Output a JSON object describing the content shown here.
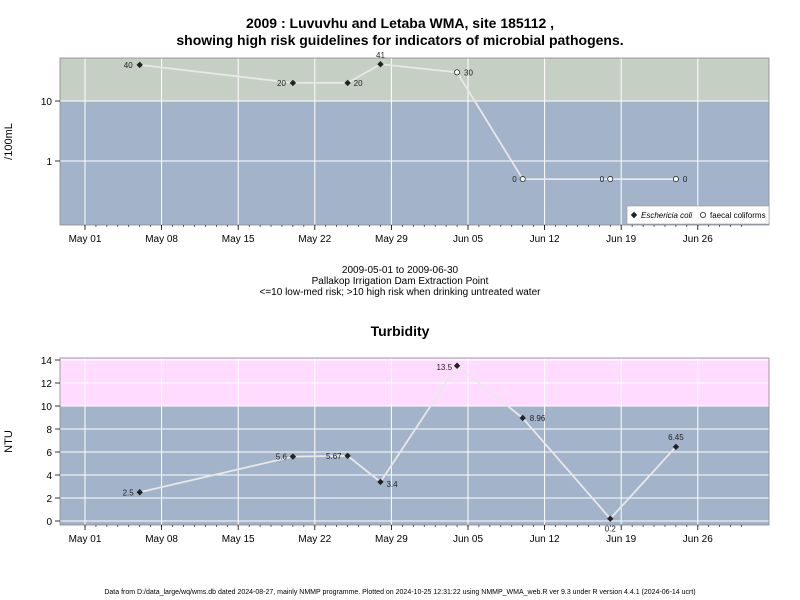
{
  "chart_data": [
    {
      "type": "line",
      "title": [
        "2009 : Luvuvhu and Letaba WMA, site 185112 ,",
        "showing high risk guidelines for indicators of microbial pathogens."
      ],
      "ylabel": "/100mL",
      "yscale": "log",
      "yticks": [
        "1",
        "10"
      ],
      "threshold": 10,
      "xticks": [
        "May 01",
        "May 08",
        "May 15",
        "May 22",
        "May 29",
        "Jun 05",
        "Jun 12",
        "Jun 19",
        "Jun 26"
      ],
      "legend_position": "bottom-right",
      "colors": {
        "high_band": "#c5cfc3",
        "low_band": "#a3b3ca",
        "line": "#e8e8e8",
        "grid": "#ffffff"
      },
      "series": [
        {
          "name": "Eschericia coli",
          "marker": "filled-diamond",
          "points": [
            {
              "x": "2009-05-06",
              "y": 40,
              "label": "40"
            },
            {
              "x": "2009-05-20",
              "y": 20,
              "label": "20"
            },
            {
              "x": "2009-05-25",
              "y": 20,
              "label": "20"
            },
            {
              "x": "2009-05-28",
              "y": 41,
              "label": "41"
            }
          ]
        },
        {
          "name": "faecal coliforms",
          "marker": "open-circle",
          "points": [
            {
              "x": "2009-06-04",
              "y": 30,
              "label": "30"
            },
            {
              "x": "2009-06-10",
              "y": 0.5,
              "label": "0"
            },
            {
              "x": "2009-06-18",
              "y": 0.5,
              "label": "0"
            },
            {
              "x": "2009-06-24",
              "y": 0.5,
              "label": "0"
            }
          ]
        }
      ]
    },
    {
      "type": "line",
      "title": "Turbidity",
      "ylabel": "NTU",
      "ylim": [
        0,
        14
      ],
      "yticks": [
        "0",
        "2",
        "4",
        "6",
        "8",
        "10",
        "12",
        "14"
      ],
      "threshold": 10,
      "xticks": [
        "May 01",
        "May 08",
        "May 15",
        "May 22",
        "May 29",
        "Jun 05",
        "Jun 12",
        "Jun 19",
        "Jun 26"
      ],
      "colors": {
        "high_band": "#ffdcff",
        "low_band": "#a3b3ca",
        "line": "#e8e8e8",
        "grid": "#ffffff"
      },
      "series": [
        {
          "marker": "filled-diamond",
          "points": [
            {
              "x": "2009-05-06",
              "y": 2.5,
              "label": "2.5"
            },
            {
              "x": "2009-05-20",
              "y": 5.6,
              "label": "5.6"
            },
            {
              "x": "2009-05-25",
              "y": 5.67,
              "label": "5.67"
            },
            {
              "x": "2009-05-28",
              "y": 3.4,
              "label": "3.4"
            },
            {
              "x": "2009-06-04",
              "y": 13.5,
              "label": "13.5"
            },
            {
              "x": "2009-06-10",
              "y": 8.96,
              "label": "8.96"
            },
            {
              "x": "2009-06-18",
              "y": 0.2,
              "label": "0.2"
            },
            {
              "x": "2009-06-24",
              "y": 6.45,
              "label": "6.45"
            }
          ]
        }
      ]
    }
  ],
  "middle_text": {
    "date_range": "2009-05-01 to 2009-06-30",
    "location": "Pallakop Irrigation Dam Extraction Point",
    "risk_note": "<=10 low-med risk; >10 high risk when drinking untreated water"
  },
  "footer": "Data from D:/data_large/wq/wms.db dated 2024-08-27, mainly NMMP programme. Plotted on 2024-10-25 12:31:22 using NMMP_WMA_web.R ver 9.3 under R version 4.4.1 (2024-06-14 ucrt)"
}
